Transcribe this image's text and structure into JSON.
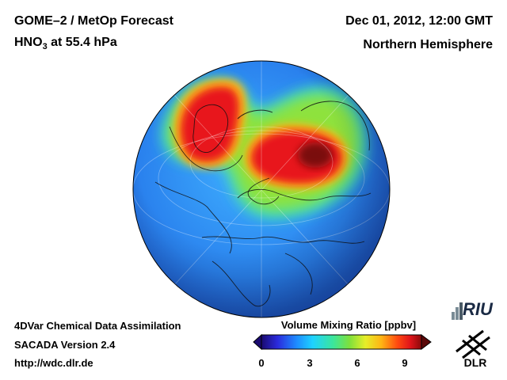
{
  "header": {
    "title": "GOME–2 / MetOp Forecast",
    "species_main": "HNO",
    "species_sub": "3",
    "species_rest": " at 55.4 hPa",
    "datetime": "Dec 01, 2012, 12:00 GMT",
    "region": "Northern Hemisphere"
  },
  "footer": {
    "line1": "4DVar Chemical Data Assimilation",
    "line2": "SACADA Version 2.4",
    "line3": "http://wdc.dlr.de"
  },
  "colorbar": {
    "label": "Volume Mixing Ratio [ppbv]",
    "ticks": [
      "0",
      "3",
      "6",
      "9"
    ],
    "range": [
      0,
      10
    ],
    "colors": [
      "#1a0a70",
      "#2a2adc",
      "#1e8cff",
      "#1ed2ff",
      "#3ce69a",
      "#7ee03c",
      "#e6ee28",
      "#ffb414",
      "#ff4a10",
      "#e0141a",
      "#8a0a0a"
    ]
  },
  "logos": {
    "riu": "RIU",
    "dlr": "DLR"
  }
}
